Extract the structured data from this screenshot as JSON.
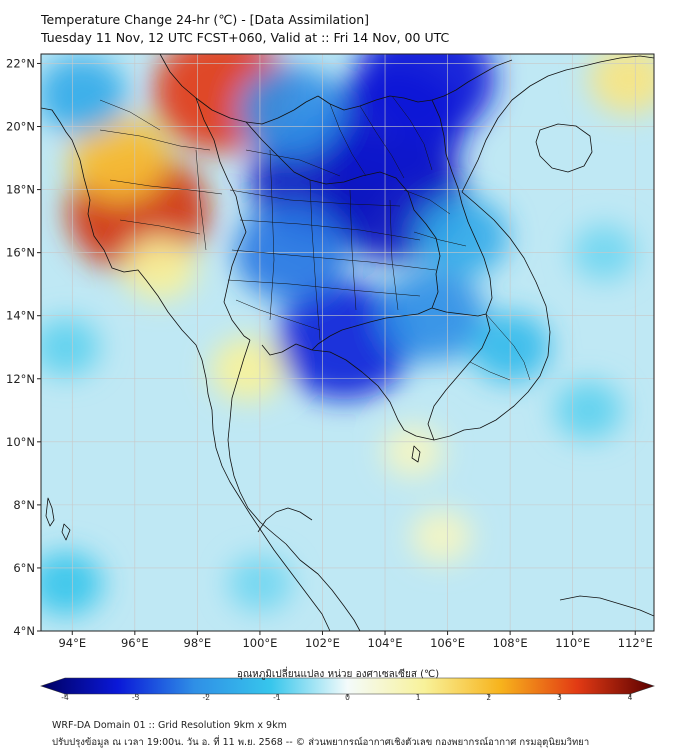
{
  "header": {
    "line1": "Temperature Change 24-hr (℃) - [Data Assimilation]",
    "line2": "Tuesday 11 Nov, 12 UTC FCST+060, Valid at :: Fri 14 Nov, 00 UTC"
  },
  "map": {
    "lat_labels": [
      "22°N",
      "20°N",
      "18°N",
      "16°N",
      "14°N",
      "12°N",
      "10°N",
      "8°N",
      "6°N",
      "4°N"
    ],
    "lon_labels": [
      "94°E",
      "96°E",
      "98°E",
      "100°E",
      "102°E",
      "104°E",
      "106°E",
      "108°E",
      "110°E",
      "112°E"
    ],
    "lat_range": [
      4,
      22.3
    ],
    "lon_range": [
      93,
      112.6
    ],
    "field_hotspots": [
      {
        "lon": 98.8,
        "lat": 21.1,
        "change": 3.0
      },
      {
        "lon": 96.1,
        "lat": 17.3,
        "change": 3.1
      },
      {
        "lon": 95.5,
        "lat": 19.0,
        "change": 1.8
      },
      {
        "lon": 96.8,
        "lat": 15.5,
        "change": 1.0
      },
      {
        "lon": 99.6,
        "lat": 12.3,
        "change": 1.0
      },
      {
        "lon": 111.8,
        "lat": 21.5,
        "change": 1.2
      },
      {
        "lon": 104.9,
        "lat": 9.7,
        "change": 0.6
      },
      {
        "lon": 105.8,
        "lat": 7.0,
        "change": 0.6
      },
      {
        "lon": 102.0,
        "lat": 18.3,
        "change": -3.2
      },
      {
        "lon": 104.3,
        "lat": 17.7,
        "change": -3.2
      },
      {
        "lon": 104.3,
        "lat": 20.0,
        "change": -3.1
      },
      {
        "lon": 105.3,
        "lat": 21.5,
        "change": -3.0
      },
      {
        "lon": 102.7,
        "lat": 13.2,
        "change": -2.9
      },
      {
        "lon": 101.0,
        "lat": 16.0,
        "change": -2.2
      },
      {
        "lon": 105.5,
        "lat": 14.0,
        "change": -2.0
      },
      {
        "lon": 101.0,
        "lat": 20.5,
        "change": -2.0
      },
      {
        "lon": 106.5,
        "lat": 16.5,
        "change": -1.5
      },
      {
        "lon": 108.0,
        "lat": 13.0,
        "change": -1.2
      },
      {
        "lon": 94.3,
        "lat": 21.0,
        "change": -1.5
      },
      {
        "lon": 93.8,
        "lat": 13.0,
        "change": -0.8
      },
      {
        "lon": 93.8,
        "lat": 5.5,
        "change": -1.0
      },
      {
        "lon": 110.5,
        "lat": 11.0,
        "change": -0.8
      },
      {
        "lon": 111.0,
        "lat": 16.0,
        "change": -0.7
      },
      {
        "lon": 100.0,
        "lat": 5.5,
        "change": -0.7
      }
    ]
  },
  "colorbar": {
    "title": "อุณหภูมิเปลี่ยนแปลง หน่วย องศาเซลเซียส (℃)",
    "min": -4,
    "max": 4,
    "ticks": [
      "-4",
      "-3",
      "-2",
      "-1",
      "0",
      "1",
      "2",
      "3",
      "4"
    ]
  },
  "footer": {
    "line1": "WRF-DA Domain 01 :: Grid Resolution 9km x 9km",
    "line2": "ปรับปรุงข้อมูล ณ เวลา 19:00น. วัน อ. ที่ 11 พ.ย. 2568 -- © ส่วนพยากรณ์อากาศเชิงตัวเลข กองพยากรณ์อากาศ กรมอุตุนิยมวิทยา"
  },
  "colors": {
    "field_zero": "#eef9fb",
    "border_line": "#111111",
    "grid_line": "#c8c8c8"
  }
}
